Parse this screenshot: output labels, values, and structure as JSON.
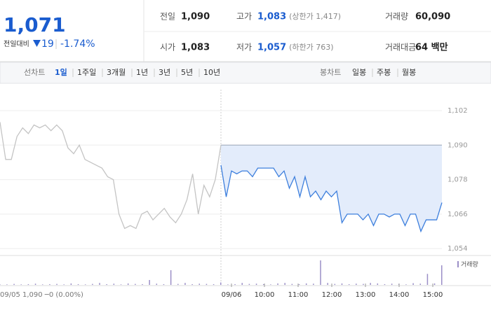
{
  "header": {
    "price": "1,071",
    "change_label": "전일대비",
    "change": "19",
    "change_pct": "-1.74%"
  },
  "summary": [
    {
      "label": "전일",
      "value": "1,090"
    },
    {
      "label": "고가",
      "value": "1,083",
      "note": "(상한가 1,417)"
    },
    {
      "label": "거래량",
      "value": "60,090"
    },
    {
      "label": "시가",
      "value": "1,083"
    },
    {
      "label": "저가",
      "value": "1,057",
      "note": "(하한가 763)"
    },
    {
      "label": "거래대금",
      "value": "64 백만"
    }
  ],
  "tabs": {
    "line_label": "선차트",
    "line_tabs": [
      "1일",
      "1주일",
      "3개월",
      "1년",
      "3년",
      "5년",
      "10년"
    ],
    "candle_label": "봉차트",
    "candle_tabs": [
      "일봉",
      "주봉",
      "월봉"
    ]
  },
  "chart_data": {
    "type": "line",
    "x_labels": [
      "09/06",
      "10:00",
      "11:00",
      "12:00",
      "13:00",
      "14:00",
      "15:00"
    ],
    "footer": "09/05 1,090 ─0 (0.00%)",
    "ylim": [
      1051.6,
      1109.3
    ],
    "yticks": [
      {
        "value": 1054,
        "label": "1,054"
      },
      {
        "value": 1066,
        "label": "1,066"
      },
      {
        "value": 1078,
        "label": "1,078"
      },
      {
        "value": 1090,
        "label": "1,090"
      },
      {
        "value": 1102,
        "label": "1,102"
      }
    ],
    "grid": true,
    "baseline": 1090,
    "series": [
      {
        "color": "#c4c4c4",
        "values": [
          1098,
          1085,
          1085,
          1093,
          1096,
          1094,
          1097,
          1096,
          1097,
          1095,
          1097,
          1095,
          1089,
          1087,
          1090,
          1085,
          1084,
          1083,
          1082,
          1079,
          1078,
          1066,
          1061,
          1062,
          1061,
          1066,
          1067,
          1064,
          1066,
          1068,
          1065,
          1063,
          1066,
          1071,
          1080,
          1066,
          1076,
          1072,
          1078,
          1090
        ]
      },
      {
        "color": "#3d7fdd",
        "values": [
          1083,
          1072,
          1081,
          1080,
          1081,
          1081,
          1079,
          1082,
          1082,
          1082,
          1082,
          1079,
          1081,
          1075,
          1079,
          1072,
          1079,
          1072,
          1074,
          1071,
          1074,
          1072,
          1074,
          1063,
          1066,
          1066,
          1066,
          1064,
          1066,
          1062,
          1066,
          1066,
          1065,
          1066,
          1066,
          1062,
          1066,
          1066,
          1060,
          1064,
          1064,
          1064,
          1070
        ]
      }
    ],
    "volume": {
      "name": "거래량",
      "color": "#9b8fc7",
      "ylim": [
        0,
        100
      ],
      "values": [
        3,
        2,
        4,
        2,
        3,
        5,
        2,
        3,
        4,
        2,
        6,
        3,
        2,
        4,
        8,
        3,
        5,
        2,
        6,
        4,
        3,
        20,
        5,
        3,
        60,
        4,
        8,
        3,
        5,
        4,
        3,
        10,
        2,
        3,
        8,
        4,
        5,
        3,
        2,
        6,
        8,
        4,
        3,
        6,
        5,
        100,
        8,
        4,
        6,
        3,
        5,
        4,
        8,
        6,
        3,
        5,
        4,
        2,
        7,
        5,
        45,
        6,
        80
      ]
    }
  }
}
